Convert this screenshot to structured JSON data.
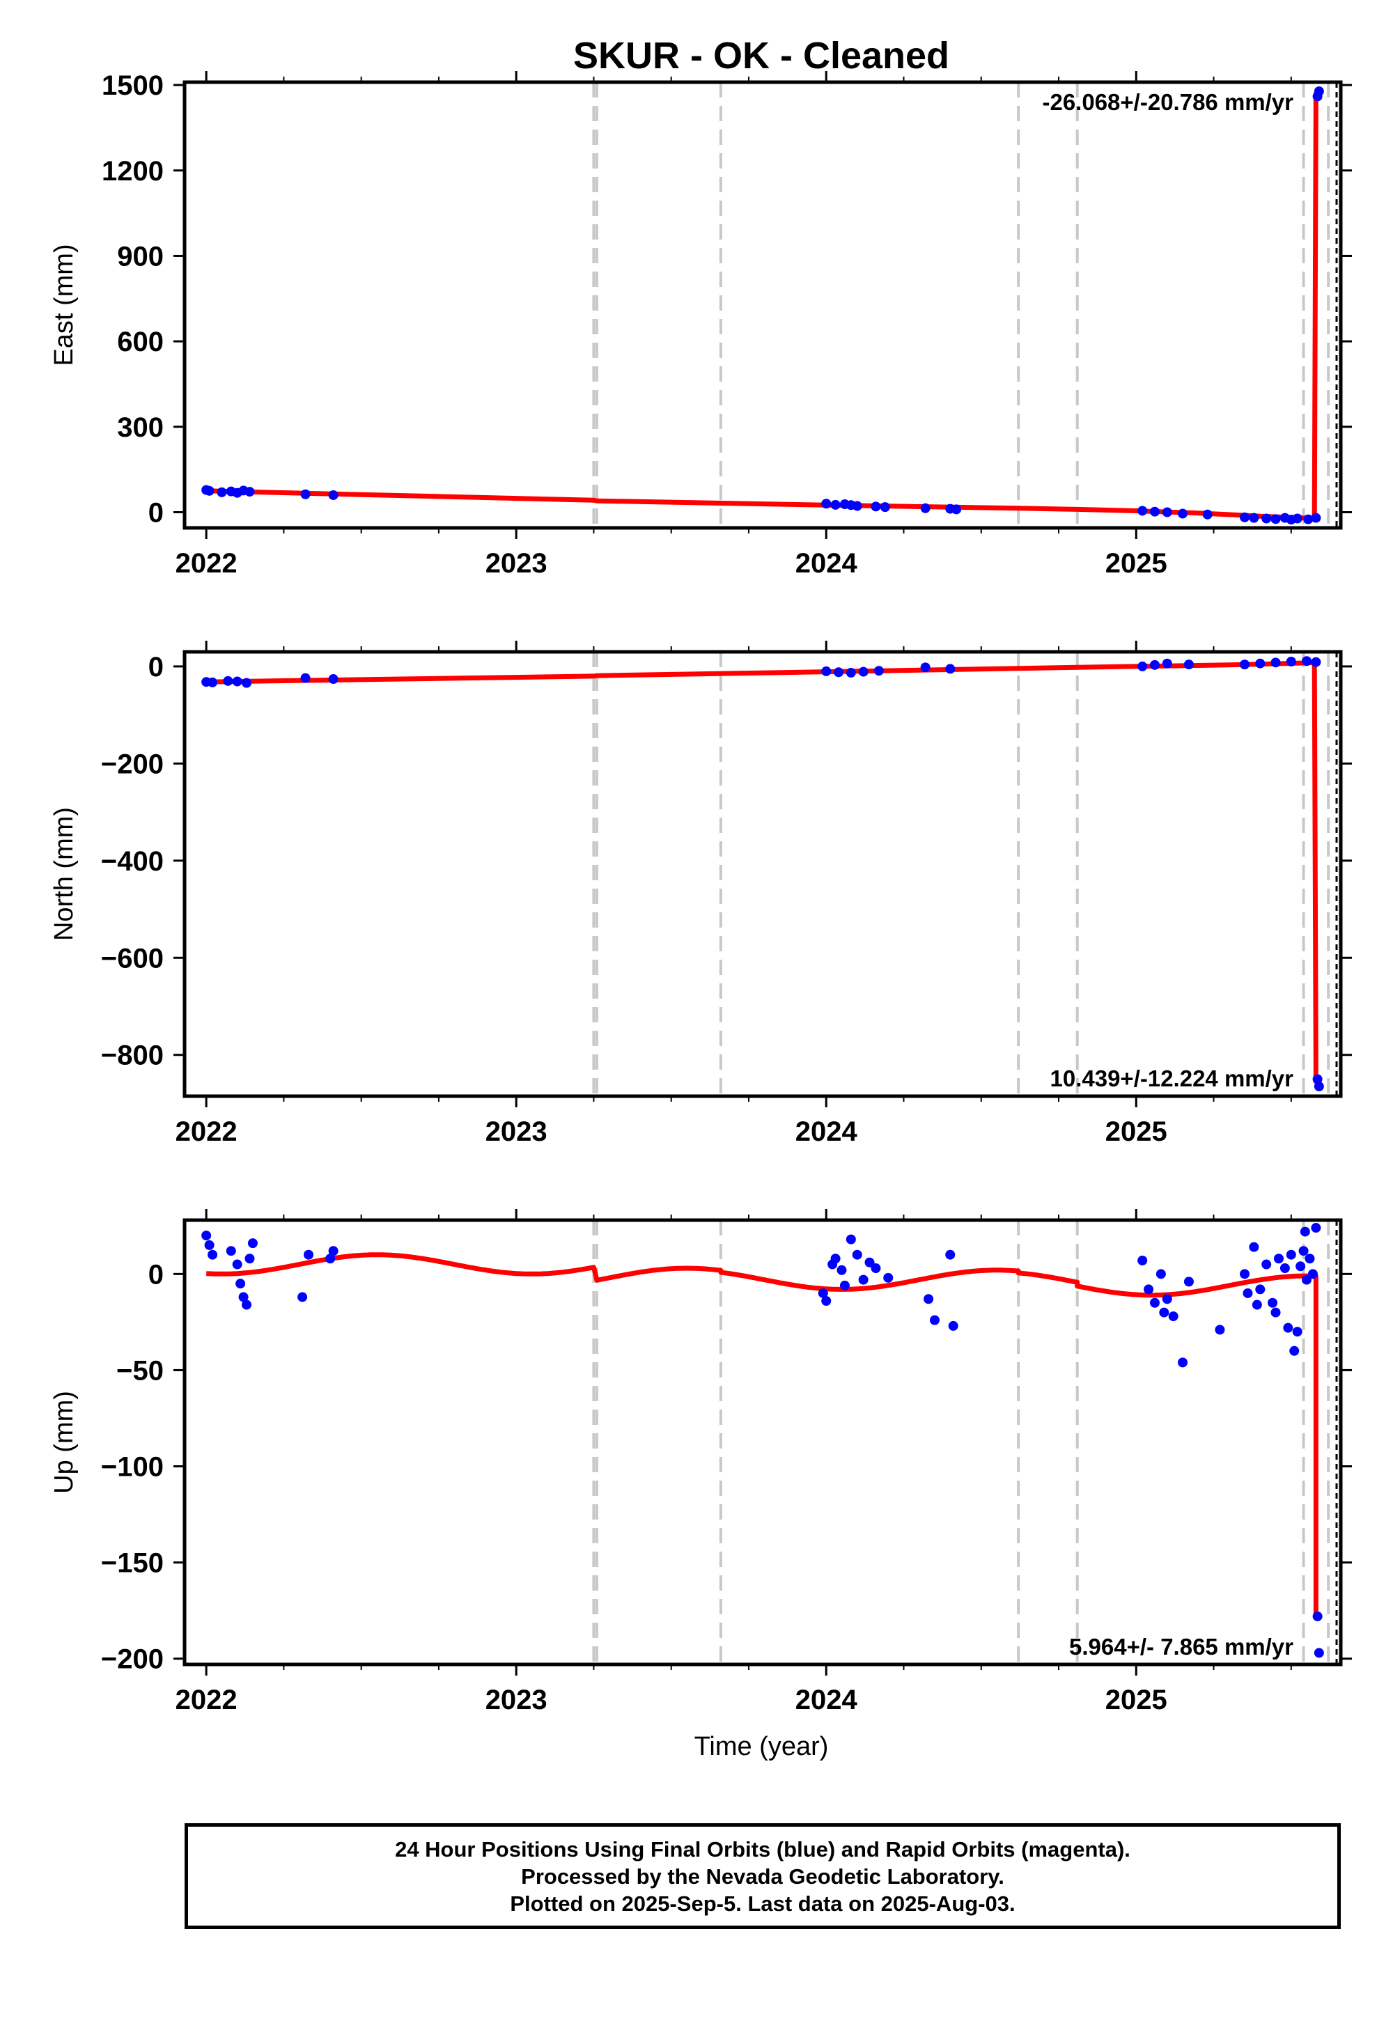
{
  "chart_data": {
    "type": "scatter",
    "title": "SKUR  - OK - Cleaned",
    "xlabel": "Time (year)",
    "xlim": [
      2021.93,
      2025.66
    ],
    "x_ticks": [
      2022,
      2023,
      2024,
      2025
    ],
    "x_tick_labels": [
      "2022",
      "2023",
      "2024",
      "2025"
    ],
    "grid": false,
    "equipment_change_lines": [
      2023.25,
      2023.26,
      2023.66,
      2024.62,
      2024.81,
      2025.54,
      2025.62
    ],
    "panels": [
      {
        "ylabel": "East (mm)",
        "ylim": [
          -55,
          1510
        ],
        "y_ticks": [
          0,
          300,
          600,
          900,
          1200,
          1500
        ],
        "y_tick_labels": [
          "0",
          "300",
          "600",
          "900",
          "1200",
          "1500"
        ],
        "rate_label": "-26.068+/-20.786 mm/yr",
        "rate_position": "top-right",
        "series": [
          {
            "color": "#0000ff",
            "kind": "points",
            "x": [
              2022.0,
              2022.01,
              2022.05,
              2022.08,
              2022.1,
              2022.12,
              2022.14,
              2022.32,
              2022.41,
              2024.0,
              2024.03,
              2024.06,
              2024.08,
              2024.1,
              2024.16,
              2024.19,
              2024.32,
              2024.4,
              2024.42,
              2025.02,
              2025.06,
              2025.1,
              2025.15,
              2025.23,
              2025.35,
              2025.38,
              2025.42,
              2025.45,
              2025.48,
              2025.5,
              2025.52,
              2025.555,
              2025.58,
              2025.585,
              2025.59
            ],
            "y": [
              78,
              75,
              70,
              73,
              68,
              76,
              72,
              63,
              60,
              30,
              26,
              28,
              25,
              22,
              20,
              18,
              14,
              12,
              10,
              5,
              2,
              0,
              -5,
              -8,
              -18,
              -20,
              -22,
              -24,
              -20,
              -26,
              -22,
              -25,
              -20,
              1460,
              1478
            ]
          }
        ],
        "model_line": {
          "color": "#ff0000",
          "x": [
            2022.0,
            2023.25,
            2023.26,
            2024.0,
            2024.62,
            2024.81,
            2025.0,
            2025.2,
            2025.4,
            2025.54,
            2025.575,
            2025.58,
            2025.59
          ],
          "y": [
            75,
            42,
            40,
            25,
            14,
            10,
            5,
            -3,
            -14,
            -20,
            -22,
            1470,
            1470
          ]
        }
      },
      {
        "ylabel": "North (mm)",
        "ylim": [
          -885,
          30
        ],
        "y_ticks": [
          -800,
          -600,
          -400,
          -200,
          0
        ],
        "y_tick_labels": [
          "−800",
          "−600",
          "−400",
          "−200",
          "0"
        ],
        "rate_label": "10.439+/-12.224 mm/yr",
        "rate_position": "bottom-right",
        "series": [
          {
            "color": "#0000ff",
            "kind": "points",
            "x": [
              2022.0,
              2022.02,
              2022.07,
              2022.1,
              2022.13,
              2022.32,
              2022.41,
              2024.0,
              2024.04,
              2024.08,
              2024.12,
              2024.17,
              2024.32,
              2024.4,
              2025.02,
              2025.06,
              2025.1,
              2025.17,
              2025.35,
              2025.4,
              2025.45,
              2025.5,
              2025.55,
              2025.58,
              2025.585,
              2025.59
            ],
            "y": [
              -32,
              -33,
              -30,
              -31,
              -34,
              -24,
              -26,
              -10,
              -12,
              -13,
              -11,
              -9,
              -2,
              -5,
              0,
              3,
              6,
              4,
              4,
              6,
              8,
              10,
              11,
              9,
              -850,
              -865
            ]
          }
        ],
        "model_line": {
          "color": "#ff0000",
          "x": [
            2022.0,
            2023.25,
            2023.26,
            2024.0,
            2024.62,
            2024.81,
            2025.0,
            2025.3,
            2025.54,
            2025.575,
            2025.58,
            2025.59
          ],
          "y": [
            -32,
            -20,
            -19,
            -11,
            -4,
            -2,
            0,
            3,
            7,
            8,
            -855,
            -855
          ]
        }
      },
      {
        "ylabel": "Up (mm)",
        "ylim": [
          -203,
          28
        ],
        "y_ticks": [
          -200,
          -150,
          -100,
          -50,
          0
        ],
        "y_tick_labels": [
          "−200",
          "−150",
          "−100",
          "−50",
          "0"
        ],
        "rate_label": "5.964+/- 7.865 mm/yr",
        "rate_position": "bottom-right",
        "series": [
          {
            "color": "#0000ff",
            "kind": "points",
            "x": [
              2022.0,
              2022.01,
              2022.02,
              2022.08,
              2022.1,
              2022.11,
              2022.12,
              2022.13,
              2022.14,
              2022.15,
              2022.31,
              2022.33,
              2022.4,
              2022.41,
              2023.99,
              2024.0,
              2024.02,
              2024.03,
              2024.05,
              2024.06,
              2024.08,
              2024.1,
              2024.12,
              2024.14,
              2024.16,
              2024.2,
              2024.33,
              2024.35,
              2024.4,
              2024.41,
              2025.02,
              2025.04,
              2025.06,
              2025.08,
              2025.09,
              2025.1,
              2025.12,
              2025.15,
              2025.17,
              2025.27,
              2025.35,
              2025.36,
              2025.38,
              2025.39,
              2025.4,
              2025.42,
              2025.44,
              2025.45,
              2025.46,
              2025.48,
              2025.49,
              2025.5,
              2025.51,
              2025.52,
              2025.53,
              2025.54,
              2025.545,
              2025.55,
              2025.56,
              2025.57,
              2025.58,
              2025.585,
              2025.59
            ],
            "y": [
              20,
              15,
              10,
              12,
              5,
              -5,
              -12,
              -16,
              8,
              16,
              -12,
              10,
              8,
              12,
              -10,
              -14,
              5,
              8,
              2,
              -6,
              18,
              10,
              -3,
              6,
              3,
              -2,
              -13,
              -24,
              10,
              -27,
              7,
              -8,
              -15,
              0,
              -20,
              -13,
              -22,
              -46,
              -4,
              -29,
              0,
              -10,
              14,
              -16,
              -8,
              5,
              -15,
              -20,
              8,
              3,
              -28,
              10,
              -40,
              -30,
              4,
              12,
              22,
              -3,
              8,
              0,
              24,
              -178,
              -197
            ]
          }
        ],
        "model_line": {
          "color": "#ff0000",
          "kind": "seasonal",
          "x_range": [
            2022.0,
            2025.58
          ],
          "offsets": [
            {
              "from": 2022.0,
              "to": 2023.25,
              "value": 5
            },
            {
              "from": 2023.26,
              "to": 2023.66,
              "value": -2
            },
            {
              "from": 2023.66,
              "to": 2024.62,
              "value": -3
            },
            {
              "from": 2024.62,
              "to": 2024.81,
              "value": -4
            },
            {
              "from": 2024.81,
              "to": 2025.58,
              "value": -6
            }
          ],
          "amplitude": 5,
          "trend_per_year": 0,
          "step_end": -178
        }
      }
    ],
    "colors": {
      "points": "#0000ff",
      "model": "#ff0000",
      "equipment_line": "#c8c8c8"
    }
  },
  "footer": {
    "line1": "24 Hour Positions Using Final Orbits (blue) and Rapid Orbits (magenta).",
    "line2": "Processed by the Nevada Geodetic Laboratory.",
    "line3": "Plotted on 2025-Sep-5. Last data on 2025-Aug-03."
  }
}
